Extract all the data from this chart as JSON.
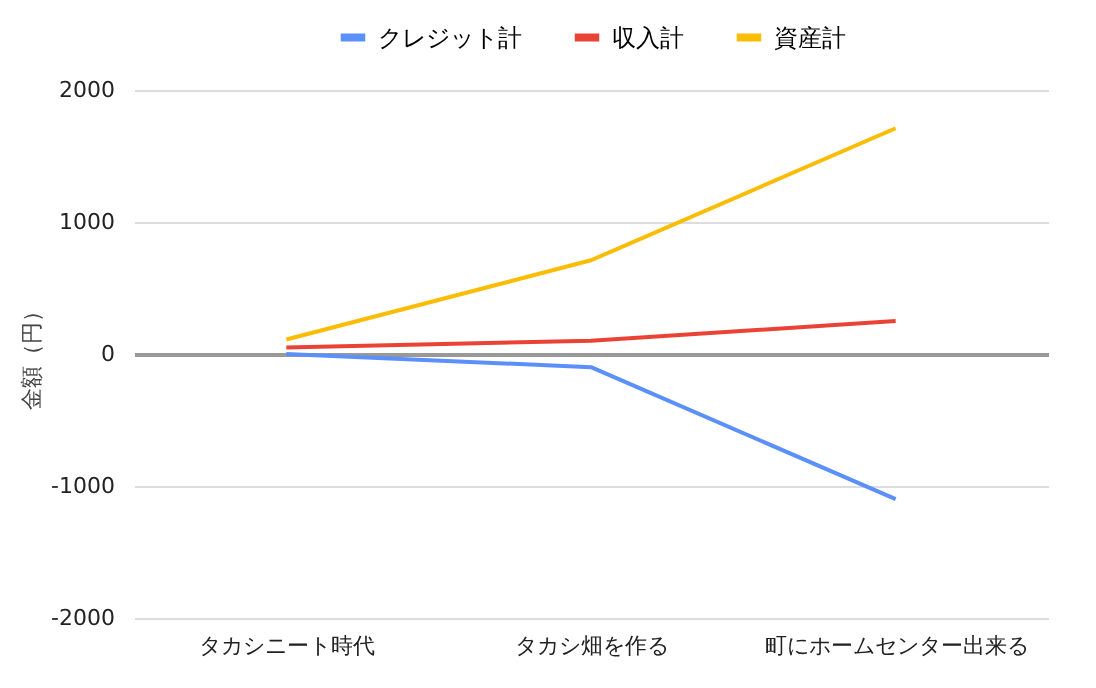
{
  "chart_data": {
    "type": "line",
    "ylabel": "金額（円）",
    "categories": [
      "タカシニート時代",
      "タカシ畑を作る",
      "町にホームセンター出来る"
    ],
    "series": [
      {
        "name": "クレジット計",
        "color": "#5b8ff9",
        "values": [
          0,
          -100,
          -1100
        ]
      },
      {
        "name": "収入計",
        "color": "#ea4335",
        "values": [
          50,
          100,
          250
        ]
      },
      {
        "name": "資産計",
        "color": "#fbbc04",
        "values": [
          110,
          710,
          1710
        ]
      }
    ],
    "ylim": [
      -2000,
      2000
    ],
    "yticks": [
      -2000,
      -1000,
      0,
      1000,
      2000
    ],
    "grid": "y",
    "legend": "top",
    "marker": "none",
    "line_style": "solid"
  }
}
